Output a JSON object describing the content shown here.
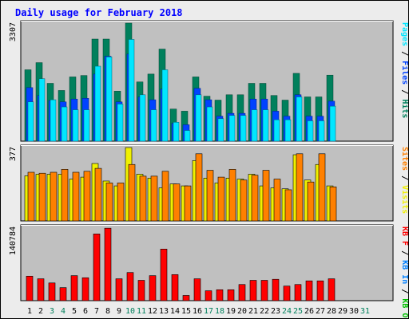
{
  "colors": {
    "hits": "#00805c",
    "files": "#0042ff",
    "pages": "#00e6ff",
    "visits": "#f0f000",
    "sites": "#ff8000",
    "kb": "#ff0000",
    "kb_in": "#0080ff",
    "kb_out": "#00c000",
    "plot_bg": "#c0c0c0",
    "panel_bg": "#ececec",
    "weekend_label": "#00805c",
    "title": "#0000ff"
  },
  "chart_data": {
    "type": "bar",
    "title": "Daily usage for February 2018",
    "days": [
      "1",
      "2",
      "3",
      "4",
      "5",
      "6",
      "7",
      "8",
      "9",
      "10",
      "11",
      "12",
      "13",
      "14",
      "15",
      "16",
      "17",
      "18",
      "19",
      "20",
      "21",
      "22",
      "23",
      "24",
      "25",
      "26",
      "27",
      "28",
      "29",
      "30",
      "31"
    ],
    "weekend_days": [
      3,
      4,
      10,
      11,
      17,
      18,
      24,
      25,
      31
    ],
    "panels": [
      {
        "id": "hits-files-pages",
        "ymax": 3307,
        "ymax_label": "3307",
        "legend": [
          {
            "key": "pages",
            "label": "Pages"
          },
          {
            "key": "sep",
            "label": " / "
          },
          {
            "key": "files",
            "label": "Files"
          },
          {
            "key": "sep",
            "label": " / "
          },
          {
            "key": "hits",
            "label": "Hits"
          }
        ],
        "series": [
          {
            "name": "Hits",
            "key": "hits",
            "values": [
              2000,
              2200,
              1620,
              1420,
              1800,
              1840,
              2860,
              2860,
              1400,
              3307,
              1660,
              1880,
              2580,
              900,
              840,
              1800,
              1260,
              1150,
              1300,
              1300,
              1620,
              1620,
              1280,
              1150,
              1900,
              1240,
              1240,
              1850
            ]
          },
          {
            "name": "Files",
            "key": "files",
            "values": [
              1500,
              1280,
              1140,
              1100,
              1180,
              1200,
              1880,
              2380,
              1100,
              2440,
              1240,
              1160,
              1460,
              500,
              460,
              1480,
              1160,
              700,
              780,
              780,
              1180,
              1180,
              840,
              700,
              1300,
              700,
              700,
              1120
            ]
          },
          {
            "name": "Pages",
            "key": "pages",
            "values": [
              1100,
              1750,
              1160,
              960,
              880,
              880,
              2100,
              2360,
              1040,
              2850,
              1300,
              880,
              2000,
              530,
              300,
              1300,
              960,
              630,
              720,
              720,
              880,
              880,
              600,
              600,
              1240,
              570,
              570,
              980
            ]
          }
        ]
      },
      {
        "id": "visits-sites",
        "ymax": 377,
        "ymax_label": "377",
        "legend": [
          {
            "key": "sites",
            "label": "Sites"
          },
          {
            "key": "sep",
            "label": " / "
          },
          {
            "key": "visits",
            "label": "Visits"
          }
        ],
        "series": [
          {
            "name": "Visits",
            "key": "visits",
            "values": [
              232,
              240,
              240,
              240,
              215,
              225,
              295,
              205,
              180,
              377,
              240,
              220,
              170,
              190,
              180,
              310,
              220,
              195,
              220,
              215,
              240,
              180,
              170,
              165,
              340,
              210,
              290,
              180
            ]
          },
          {
            "name": "Sites",
            "key": "sites",
            "values": [
              250,
              245,
              250,
              265,
              250,
              255,
              270,
              195,
              195,
              290,
              230,
              230,
              255,
              190,
              180,
              345,
              260,
              225,
              265,
              210,
              235,
              260,
              215,
              160,
              345,
              200,
              345,
              175
            ]
          }
        ]
      },
      {
        "id": "kbytes",
        "ymax": 140784,
        "ymax_label": "140784",
        "legend": [
          {
            "key": "kb",
            "label": "KB F"
          },
          {
            "key": "sep",
            "label": " / "
          },
          {
            "key": "kb_in",
            "label": "KB In"
          },
          {
            "key": "sep",
            "label": " / "
          },
          {
            "key": "kb_out",
            "label": "KB Out"
          }
        ],
        "series": [
          {
            "name": "KB F",
            "key": "kb",
            "values": [
              47000,
              42000,
              34000,
              25000,
              48000,
              44000,
              128000,
              139000,
              42000,
              54000,
              39000,
              48000,
              99000,
              50000,
              10000,
              42000,
              19000,
              21000,
              21000,
              31000,
              39000,
              39000,
              41000,
              28000,
              31000,
              38000,
              38000,
              42000
            ]
          }
        ]
      }
    ]
  }
}
